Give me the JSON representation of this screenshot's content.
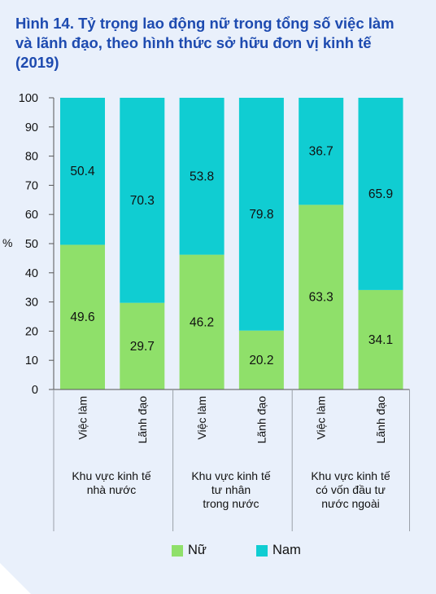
{
  "title": "Hình 14. Tỷ trọng lao động nữ trong tổng số việc làm và lãnh đạo, theo hình thức sở hữu đơn vị kinh tế (2019)",
  "colors": {
    "nu": "#8fe06a",
    "nam": "#10cdd2",
    "title": "#1e4bb0",
    "panel": "#e9f0fb"
  },
  "legend": {
    "nu": "Nữ",
    "nam": "Nam"
  },
  "chart_data": {
    "type": "bar",
    "stacked": true,
    "title": "Hình 14. Tỷ trọng lao động nữ trong tổng số việc làm và lãnh đạo, theo hình thức sở hữu đơn vị kinh tế (2019)",
    "ylabel": "%",
    "ylim": [
      0,
      100
    ],
    "yticks": [
      0,
      10,
      20,
      30,
      40,
      50,
      60,
      70,
      80,
      90,
      100
    ],
    "categories": [
      "Việc làm",
      "Lãnh đạo",
      "Việc làm",
      "Lãnh đạo",
      "Việc làm",
      "Lãnh đạo"
    ],
    "groups": [
      {
        "label_lines": [
          "Khu vực kinh tế",
          "nhà nước"
        ]
      },
      {
        "label_lines": [
          "Khu vực kinh tế",
          "tư nhân",
          "trong nước"
        ]
      },
      {
        "label_lines": [
          "Khu vực kinh tế",
          "có vốn đầu tư",
          "nước ngoài"
        ]
      }
    ],
    "series": [
      {
        "name": "Nữ",
        "values": [
          49.6,
          29.7,
          46.2,
          20.2,
          63.3,
          34.1
        ]
      },
      {
        "name": "Nam",
        "values": [
          50.4,
          70.3,
          53.8,
          79.8,
          36.7,
          65.9
        ]
      }
    ],
    "legend_position": "bottom",
    "grid": false
  }
}
